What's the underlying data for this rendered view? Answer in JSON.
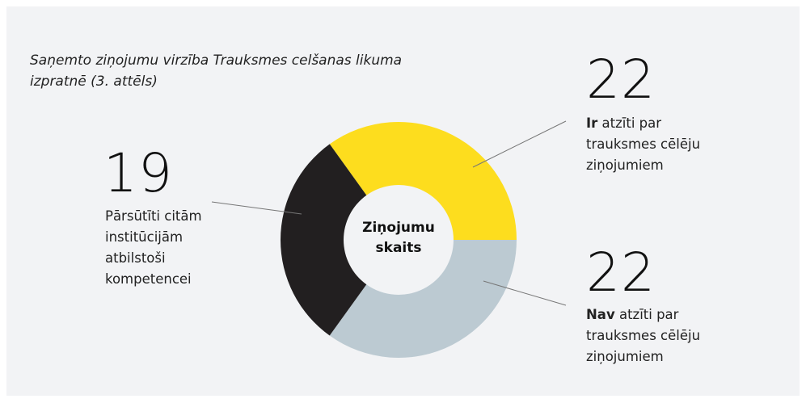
{
  "chart_data": {
    "type": "donut",
    "title": "Saņemto ziņojumu virzība Trauksmes celšanas likuma izpratnē (3. attēls)",
    "center_label": "Ziņojumu skaits",
    "labels_bold": [
      "Ir",
      "Nav",
      null
    ],
    "labels": [
      "atzīti par trauksmes cēlēju ziņojumiem",
      "atzīti par trauksmes cēlēju ziņojumiem",
      "Pārsūtīti citām institūcijām atbilstoši kompetencei"
    ],
    "values": [
      22,
      22,
      19
    ],
    "colors": [
      "#fddd1e",
      "#bccad2",
      "#221f20"
    ]
  }
}
